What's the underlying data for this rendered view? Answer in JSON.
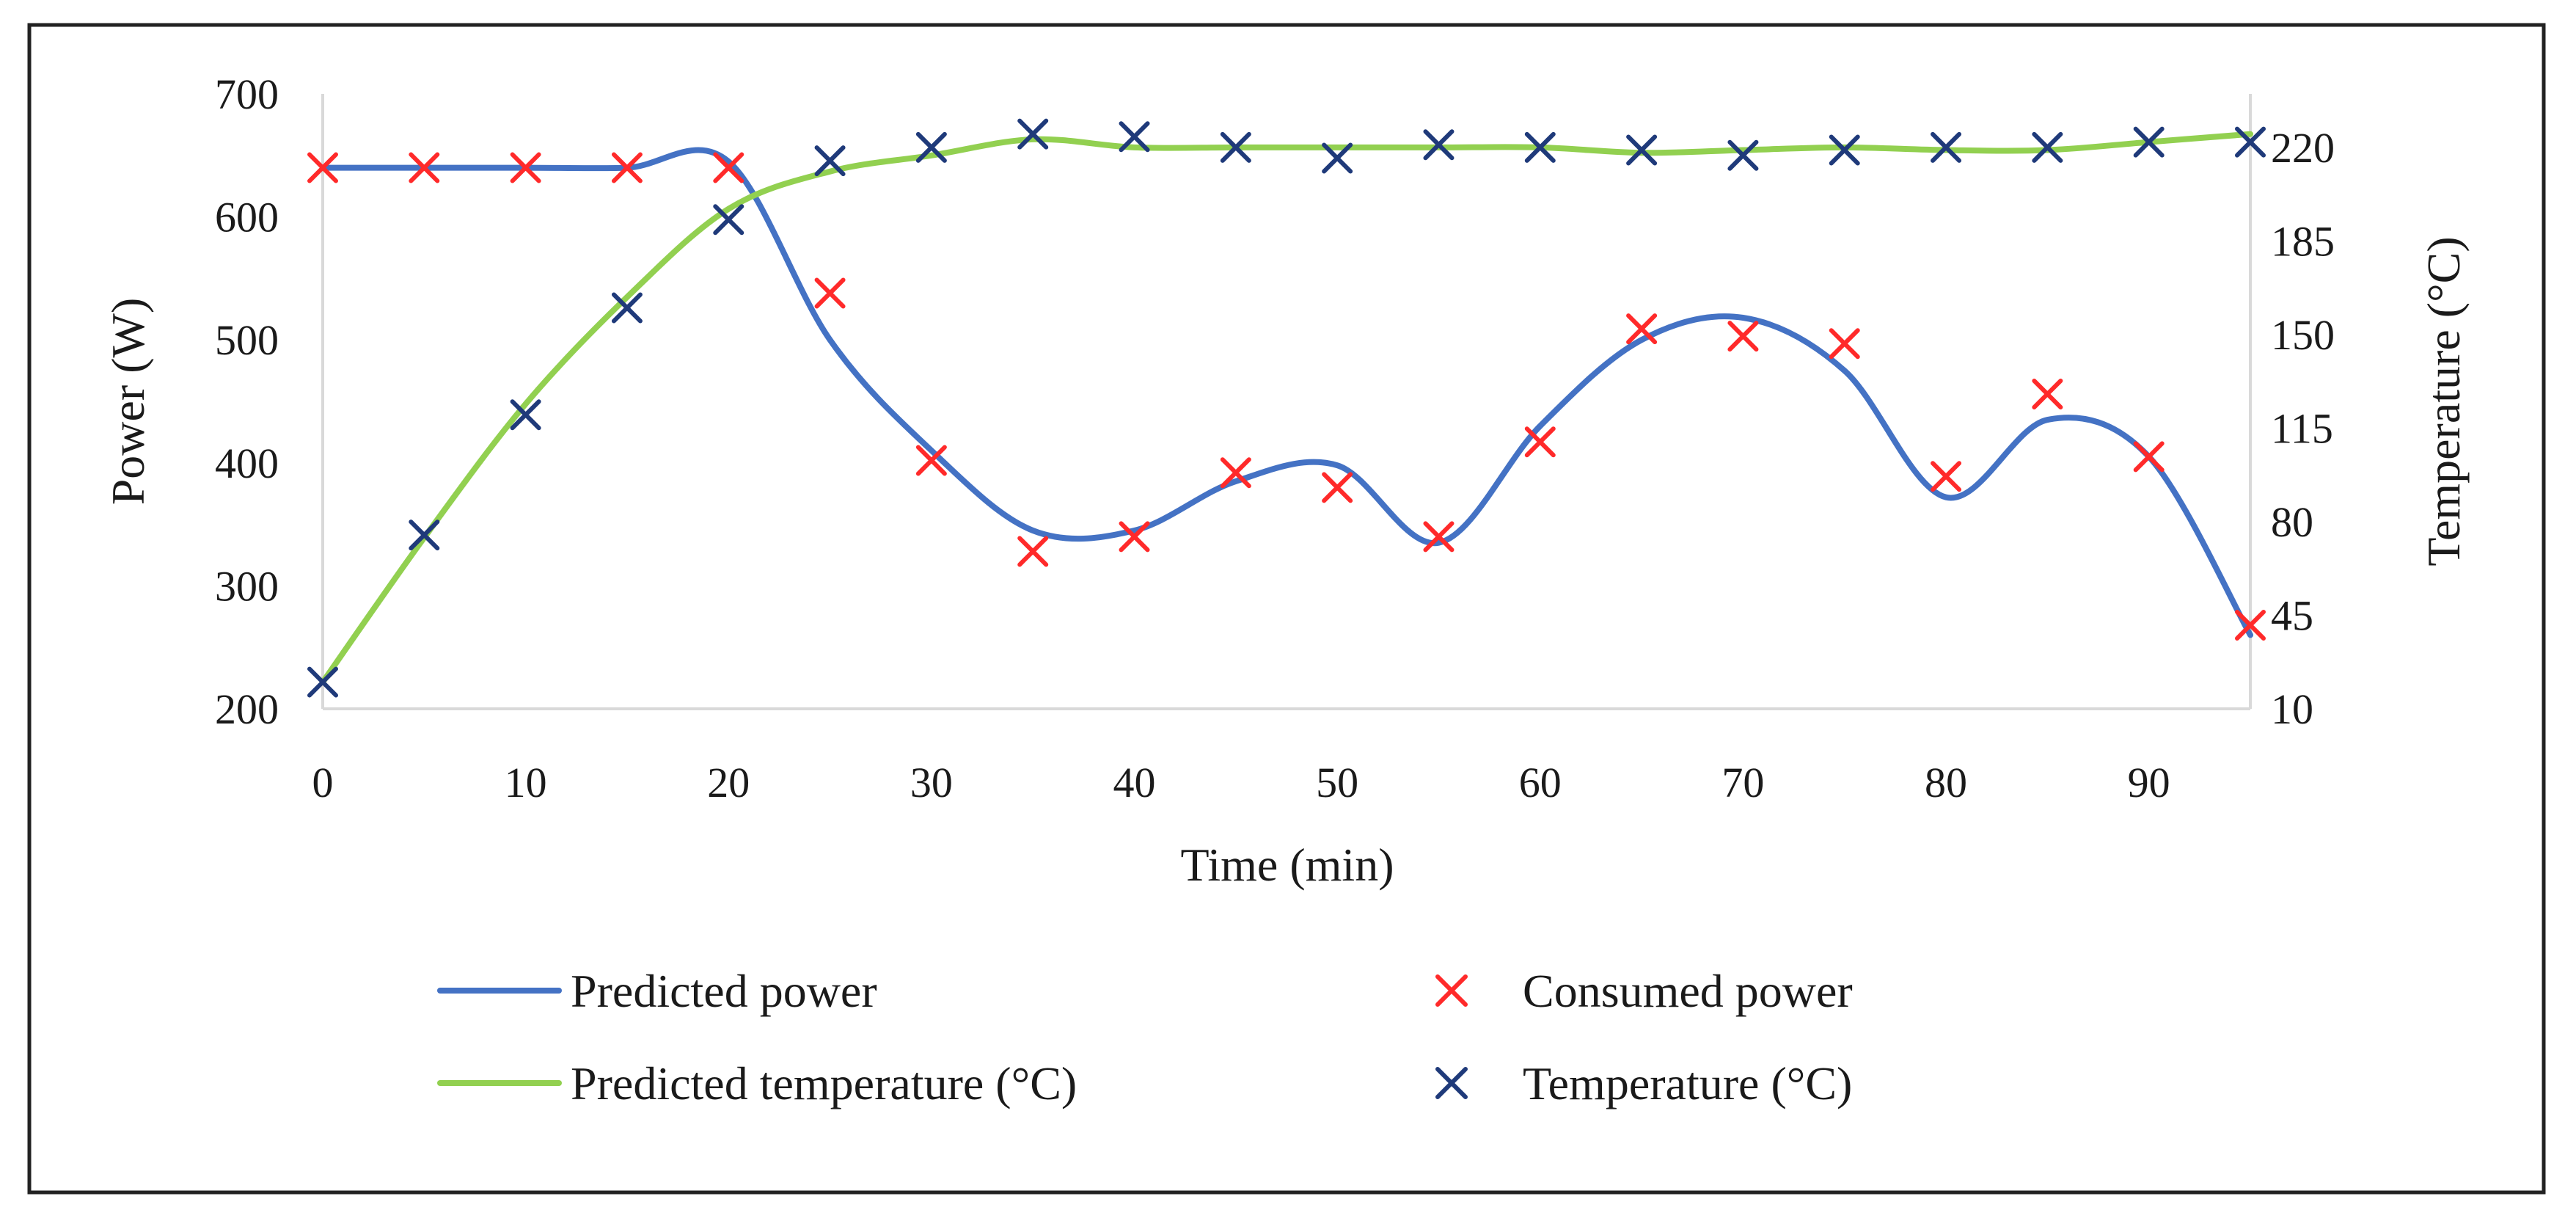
{
  "chart_data": {
    "type": "line",
    "title": "",
    "xlabel": "Time (min)",
    "ylabel_left": "Power (W)",
    "ylabel_right": "Temperature (°C)",
    "xlim": [
      0,
      95
    ],
    "ylim_left": [
      200,
      700
    ],
    "ylim_right": [
      10,
      240
    ],
    "x_ticks": [
      0,
      10,
      20,
      30,
      40,
      50,
      60,
      70,
      80,
      90
    ],
    "y_ticks_left": [
      200,
      300,
      400,
      500,
      600,
      700
    ],
    "y_ticks_right": [
      10,
      45,
      80,
      115,
      150,
      185,
      220
    ],
    "grid": false,
    "legend_position": "bottom",
    "colors": {
      "predicted_power": "#4472c4",
      "predicted_temperature": "#92d050",
      "consumed_power": "#ff2a2a",
      "temperature": "#1f3a7a"
    },
    "series": [
      {
        "name": "Predicted power",
        "kind": "smooth-line",
        "axis": "left",
        "x": [
          0,
          5,
          10,
          15,
          20,
          25,
          30,
          35,
          40,
          45,
          50,
          55,
          60,
          65,
          70,
          75,
          80,
          85,
          90,
          95
        ],
        "values": [
          640,
          640,
          640,
          640,
          645,
          500,
          410,
          345,
          345,
          385,
          398,
          335,
          430,
          500,
          518,
          475,
          372,
          435,
          405,
          260
        ]
      },
      {
        "name": "Predicted temperature (°C)",
        "kind": "smooth-line",
        "axis": "right",
        "x": [
          0,
          5,
          10,
          15,
          20,
          25,
          30,
          35,
          40,
          45,
          50,
          55,
          60,
          65,
          70,
          75,
          80,
          85,
          90,
          95
        ],
        "values": [
          20,
          74,
          124,
          164,
          197,
          211,
          217,
          223,
          220,
          220,
          220,
          220,
          220,
          218,
          219,
          220,
          219,
          219,
          222,
          225
        ]
      },
      {
        "name": "Consumed power",
        "kind": "marker",
        "axis": "left",
        "x": [
          0,
          5,
          10,
          15,
          20,
          25,
          30,
          35,
          40,
          45,
          50,
          55,
          60,
          65,
          70,
          75,
          80,
          85,
          90,
          95
        ],
        "values": [
          640,
          640,
          640,
          640,
          640,
          538,
          402,
          328,
          340,
          392,
          380,
          340,
          417,
          509,
          503,
          497,
          389,
          456,
          405,
          268
        ]
      },
      {
        "name": "Temperature (°C)",
        "kind": "marker",
        "axis": "right",
        "x": [
          0,
          5,
          10,
          15,
          20,
          25,
          30,
          35,
          40,
          45,
          50,
          55,
          60,
          65,
          70,
          75,
          80,
          85,
          90,
          95
        ],
        "values": [
          20,
          75,
          120,
          160,
          193,
          215,
          220,
          225,
          224,
          220,
          216,
          221,
          220,
          219,
          217,
          219,
          220,
          220,
          222,
          222
        ]
      }
    ]
  }
}
